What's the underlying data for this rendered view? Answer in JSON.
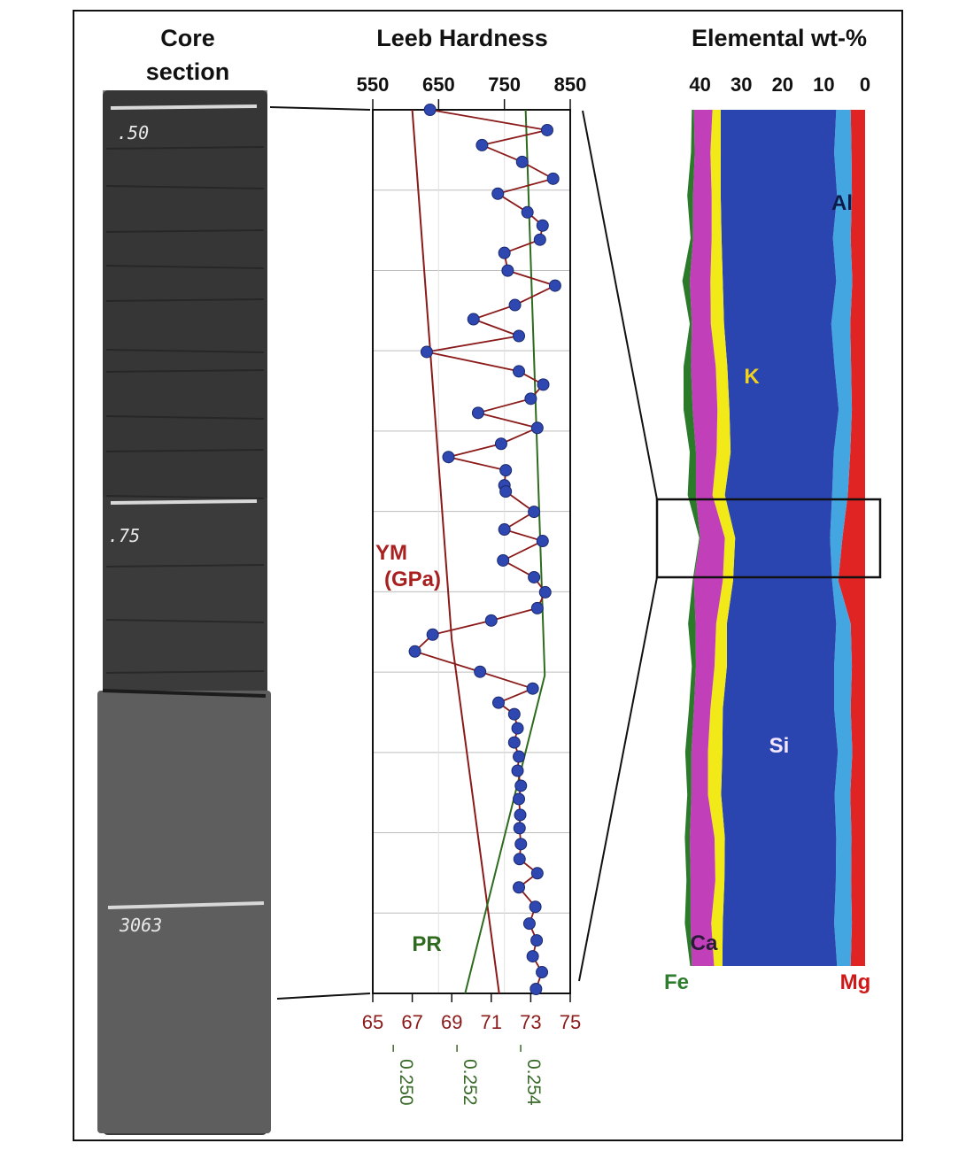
{
  "titles": {
    "core_line1": "Core",
    "core_line2": "section",
    "leeb": "Leeb Hardness",
    "elemental": "Elemental wt-%"
  },
  "core_marks": [
    ".50",
    ".75",
    "3063"
  ],
  "labels": {
    "ym_line1": "YM",
    "ym_line2": "(GPa)",
    "pr": "PR",
    "al": "Al",
    "k": "K",
    "si": "Si",
    "ca": "Ca",
    "fe": "Fe",
    "mg": "Mg"
  },
  "colors": {
    "leeb_line": "#8b1a1a",
    "leeb_point": "#2f47b0",
    "ym": "#8b1a1a",
    "pr": "#2e6b1f",
    "Fe": "#2a7a2a",
    "Ca": "#c13fb8",
    "K": "#f2ea18",
    "Si": "#2a45b0",
    "Al": "#43a6e0",
    "Mg": "#e02424"
  },
  "chart_data": [
    {
      "type": "line",
      "name": "leeb-hardness-log",
      "title": "Leeb Hardness",
      "x_axis": {
        "ticks": [
          550,
          650,
          750,
          850
        ],
        "range": [
          550,
          850
        ]
      },
      "y_depth_fraction_range": [
        0,
        1
      ],
      "series": [
        {
          "name": "Leeb Hardness",
          "depth": [
            0.0,
            0.023,
            0.04,
            0.059,
            0.078,
            0.095,
            0.116,
            0.131,
            0.147,
            0.162,
            0.182,
            0.199,
            0.221,
            0.237,
            0.256,
            0.274,
            0.296,
            0.311,
            0.327,
            0.343,
            0.36,
            0.378,
            0.393,
            0.408,
            0.425,
            0.432,
            0.455,
            0.475,
            0.488,
            0.51,
            0.529,
            0.546,
            0.564,
            0.578,
            0.594,
            0.613,
            0.636,
            0.655,
            0.671,
            0.684,
            0.7,
            0.716,
            0.732,
            0.748,
            0.765,
            0.78,
            0.798,
            0.813,
            0.831,
            0.848,
            0.864,
            0.88,
            0.902,
            0.921,
            0.94,
            0.958,
            0.976,
            0.995
          ],
          "values": [
            637,
            815,
            716,
            777,
            824,
            740,
            785,
            808,
            804,
            750,
            755,
            827,
            766,
            703,
            772,
            632,
            772,
            809,
            790,
            710,
            800,
            745,
            665,
            752,
            750,
            752,
            795,
            750,
            808,
            748,
            795,
            812,
            800,
            730,
            641,
            614,
            713,
            793,
            741,
            765,
            770,
            765,
            772,
            770,
            775,
            772,
            774,
            773,
            775,
            773,
            800,
            772,
            797,
            788,
            799,
            793,
            807,
            798
          ]
        }
      ]
    },
    {
      "type": "line",
      "name": "youngs-modulus-and-poisson-ratio",
      "series": [
        {
          "name": "YM (GPa)",
          "x_axis": {
            "ticks": [
              65,
              67,
              69,
              71,
              73,
              75
            ],
            "range": [
              65,
              75
            ]
          },
          "depth": [
            0.0,
            0.6,
            1.0
          ],
          "values": [
            67.0,
            69.0,
            71.4
          ]
        },
        {
          "name": "PR",
          "x_axis": {
            "ticks": [
              "0.250",
              "0.252",
              "0.254"
            ],
            "range": [
              0.2493,
              0.2555
            ]
          },
          "depth": [
            0.0,
            0.64,
            1.0
          ],
          "values": [
            0.2541,
            0.2547,
            0.2522
          ]
        }
      ]
    },
    {
      "type": "area",
      "name": "elemental-composition",
      "title": "Elemental wt-%",
      "x_axis": {
        "ticks": [
          40,
          30,
          20,
          10,
          0
        ],
        "range": [
          0,
          44
        ],
        "reversed": true
      },
      "stack_order": [
        "Mg",
        "Al",
        "Si",
        "K",
        "Ca",
        "Fe"
      ],
      "depth": [
        0.0,
        0.05,
        0.1,
        0.15,
        0.2,
        0.25,
        0.3,
        0.35,
        0.4,
        0.45,
        0.5,
        0.55,
        0.6,
        0.65,
        0.7,
        0.75,
        0.8,
        0.85,
        0.9,
        0.95,
        1.0
      ],
      "series": [
        {
          "name": "Mg",
          "values": [
            3.5,
            3.3,
            3.2,
            3.5,
            3.1,
            3.6,
            3.4,
            3.2,
            3.6,
            4.2,
            5.5,
            6.5,
            3.5,
            3.2,
            3.5,
            3.1,
            3.6,
            3.3,
            3.4,
            3.2,
            3.5
          ]
        },
        {
          "name": "Al",
          "values": [
            3.5,
            4.2,
            3.6,
            4.3,
            3.9,
            4.6,
            4.0,
            3.2,
            4.0,
            3.8,
            3.0,
            1.5,
            3.5,
            4.3,
            4.0,
            3.5,
            3.8,
            3.7,
            3.7,
            4.3,
            3.3
          ]
        },
        {
          "name": "Si",
          "values": [
            28.0,
            27.5,
            28.2,
            27.0,
            27.5,
            26.0,
            26.0,
            26.5,
            25.0,
            26.0,
            23.0,
            24.0,
            26.5,
            26.0,
            27.0,
            28.0,
            27.5,
            27.0,
            27.0,
            27.0,
            27.8
          ]
        },
        {
          "name": "K",
          "values": [
            2.0,
            2.5,
            2.2,
            2.4,
            3.0,
            3.2,
            2.8,
            2.9,
            3.4,
            3.0,
            2.5,
            2.5,
            2.6,
            3.0,
            3.0,
            3.5,
            3.2,
            2.5,
            2.2,
            2.8,
            2.0
          ]
        },
        {
          "name": "Ca",
          "values": [
            4.5,
            3.8,
            4.5,
            4.5,
            5.0,
            4.6,
            6.0,
            6.0,
            5.0,
            4.0,
            6.0,
            7.0,
            5.0,
            4.5,
            4.0,
            4.0,
            4.0,
            6.0,
            6.0,
            5.0,
            5.4
          ]
        },
        {
          "name": "Fe",
          "values": [
            0.5,
            0.9,
            1.4,
            0.6,
            1.8,
            0.5,
            1.8,
            2.2,
            1.5,
            2.0,
            0.2,
            0.3,
            1.8,
            1.0,
            1.2,
            1.5,
            1.0,
            1.2,
            1.0,
            1.4,
            0.4
          ]
        }
      ]
    }
  ]
}
